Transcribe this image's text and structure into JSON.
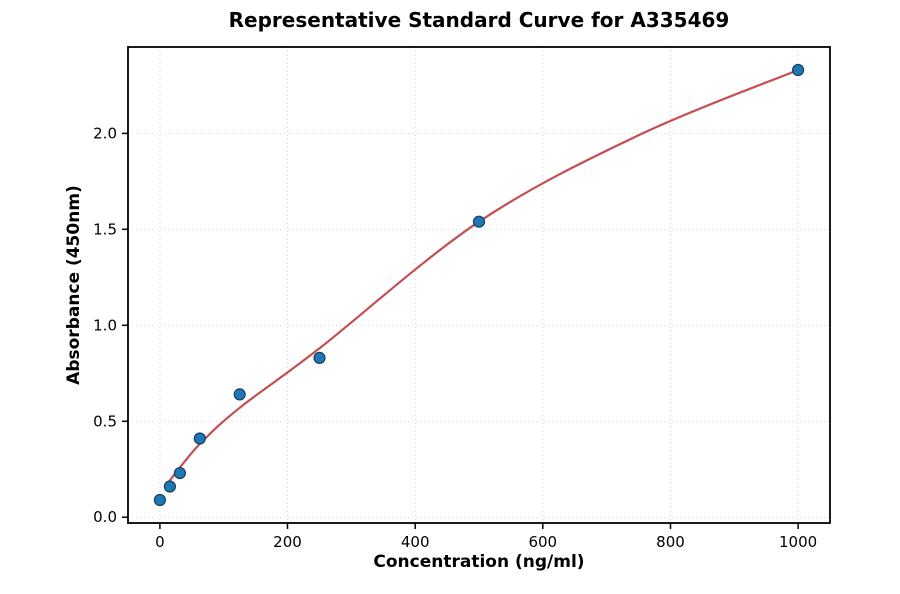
{
  "chart_data": {
    "type": "scatter",
    "title": "Representative Standard Curve for A335469",
    "xlabel": "Concentration (ng/ml)",
    "ylabel": "Absorbance (450nm)",
    "xlim": [
      -50,
      1050
    ],
    "ylim": [
      -0.03,
      2.45
    ],
    "x_ticks": [
      0,
      200,
      400,
      600,
      800,
      1000
    ],
    "x_tick_labels": [
      "0",
      "200",
      "400",
      "600",
      "800",
      "1000"
    ],
    "y_ticks": [
      0.0,
      0.5,
      1.0,
      1.5,
      2.0
    ],
    "y_tick_labels": [
      "0.0",
      "0.5",
      "1.0",
      "1.5",
      "2.0"
    ],
    "grid": true,
    "legend": "none",
    "series": [
      {
        "name": "standard-points",
        "type": "scatter",
        "x": [
          0,
          15.6,
          31.25,
          62.5,
          125,
          250,
          500,
          1000
        ],
        "y": [
          0.09,
          0.16,
          0.23,
          0.41,
          0.64,
          0.83,
          1.54,
          2.33
        ]
      },
      {
        "name": "fitted-curve",
        "type": "line",
        "x": [
          15,
          62,
          125,
          250,
          500,
          750,
          1000
        ],
        "y": [
          0.19,
          0.38,
          0.57,
          0.88,
          1.54,
          1.99,
          2.33
        ]
      }
    ],
    "colors": {
      "point_fill": "#1f77b4",
      "point_edge": "#16405f",
      "curve": "#c44e52",
      "grid": "#d3d3d3",
      "axis": "#000000",
      "background": "#ffffff"
    },
    "marker_radius": 5.5
  }
}
